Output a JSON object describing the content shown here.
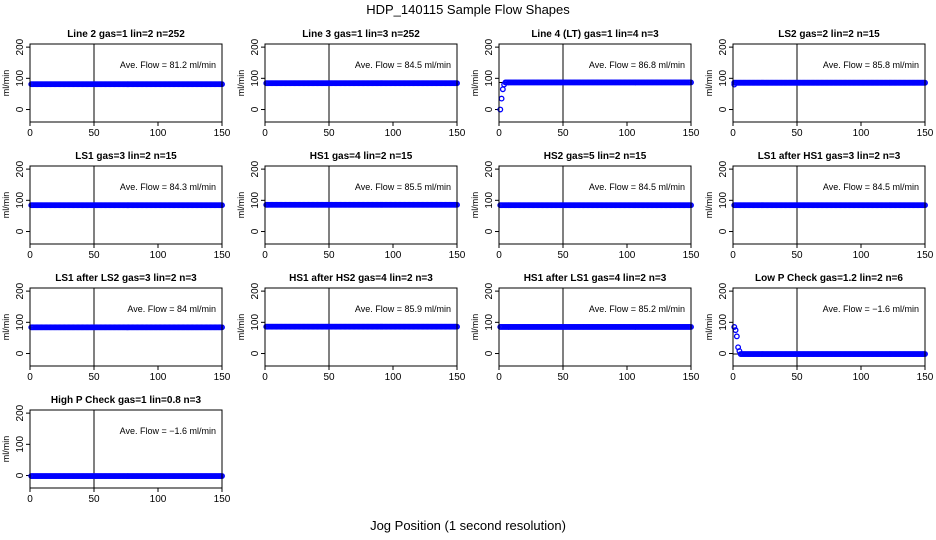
{
  "figure": {
    "title": "HDP_140115  Sample Flow Shapes",
    "x_axis_title": "Jog Position (1 second resolution)",
    "y_axis_label": "ml/min",
    "annotation_prefix": "Ave. Flow = ",
    "annotation_unit": "ml/min",
    "point_color": "#0000ff",
    "x_ticks": [
      0,
      50,
      100,
      150
    ],
    "y_ticks": [
      0,
      100,
      200
    ],
    "vline_x": 50
  },
  "chart_data": [
    {
      "type": "scatter",
      "title": "Line 2 gas=1 lin=2 n=252",
      "ave_flow": "81.2",
      "xlim": [
        0,
        150
      ],
      "ylim": [
        -40,
        210
      ],
      "hline": 81.2,
      "shape": "flat",
      "level": 81.2,
      "x_start": 1,
      "x_end": 150,
      "startup": []
    },
    {
      "type": "scatter",
      "title": "Line 3 gas=1 lin=3 n=252",
      "ave_flow": "84.5",
      "xlim": [
        0,
        150
      ],
      "ylim": [
        -40,
        210
      ],
      "hline": 84.5,
      "shape": "flat",
      "level": 84.5,
      "x_start": 1,
      "x_end": 150,
      "startup": []
    },
    {
      "type": "scatter",
      "title": "Line 4 (LT) gas=1 lin=4 n=3",
      "ave_flow": "86.8",
      "xlim": [
        0,
        150
      ],
      "ylim": [
        -40,
        210
      ],
      "hline": 86.8,
      "shape": "flat",
      "level": 86.8,
      "x_start": 5,
      "x_end": 150,
      "startup": [
        [
          1,
          0
        ],
        [
          2,
          35
        ],
        [
          3,
          65
        ],
        [
          4,
          80
        ]
      ]
    },
    {
      "type": "scatter",
      "title": "LS2 gas=2 lin=2 n=15",
      "ave_flow": "85.8",
      "xlim": [
        0,
        150
      ],
      "ylim": [
        -40,
        210
      ],
      "hline": 85.8,
      "shape": "flat",
      "level": 85.8,
      "x_start": 1,
      "x_end": 150,
      "startup": [
        [
          1,
          80
        ]
      ]
    },
    {
      "type": "scatter",
      "title": "LS1 gas=3 lin=2 n=15",
      "ave_flow": "84.3",
      "xlim": [
        0,
        150
      ],
      "ylim": [
        -40,
        210
      ],
      "hline": 84.3,
      "shape": "flat",
      "level": 84.3,
      "x_start": 1,
      "x_end": 150,
      "startup": []
    },
    {
      "type": "scatter",
      "title": "HS1 gas=4 lin=2 n=15",
      "ave_flow": "85.5",
      "xlim": [
        0,
        150
      ],
      "ylim": [
        -40,
        210
      ],
      "hline": 85.5,
      "shape": "flat",
      "level": 85.5,
      "x_start": 1,
      "x_end": 150,
      "startup": []
    },
    {
      "type": "scatter",
      "title": "HS2 gas=5 lin=2 n=15",
      "ave_flow": "84.5",
      "xlim": [
        0,
        150
      ],
      "ylim": [
        -40,
        210
      ],
      "hline": 84.5,
      "shape": "flat",
      "level": 84.5,
      "x_start": 1,
      "x_end": 150,
      "startup": []
    },
    {
      "type": "scatter",
      "title": "LS1 after HS1 gas=3 lin=2 n=3",
      "ave_flow": "84.5",
      "xlim": [
        0,
        150
      ],
      "ylim": [
        -40,
        210
      ],
      "hline": 84.5,
      "shape": "flat",
      "level": 84.5,
      "x_start": 1,
      "x_end": 150,
      "startup": []
    },
    {
      "type": "scatter",
      "title": "LS1 after LS2 gas=3 lin=2 n=3",
      "ave_flow": "84",
      "xlim": [
        0,
        150
      ],
      "ylim": [
        -40,
        210
      ],
      "hline": 84,
      "shape": "flat",
      "level": 84,
      "x_start": 1,
      "x_end": 150,
      "startup": []
    },
    {
      "type": "scatter",
      "title": "HS1 after HS2 gas=4 lin=2 n=3",
      "ave_flow": "85.9",
      "xlim": [
        0,
        150
      ],
      "ylim": [
        -40,
        210
      ],
      "hline": 85.9,
      "shape": "flat",
      "level": 85.9,
      "x_start": 1,
      "x_end": 150,
      "startup": []
    },
    {
      "type": "scatter",
      "title": "HS1 after LS1 gas=4 lin=2 n=3",
      "ave_flow": "85.2",
      "xlim": [
        0,
        150
      ],
      "ylim": [
        -40,
        210
      ],
      "hline": 85.2,
      "shape": "flat",
      "level": 85.2,
      "x_start": 1,
      "x_end": 150,
      "startup": []
    },
    {
      "type": "scatter",
      "title": "Low P Check gas=1.2 lin=2 n=6",
      "ave_flow": "−1.6",
      "xlim": [
        0,
        150
      ],
      "ylim": [
        -40,
        210
      ],
      "hline": -1.6,
      "shape": "flat",
      "level": -1.6,
      "x_start": 6,
      "x_end": 150,
      "startup": [
        [
          1,
          85
        ],
        [
          2,
          75
        ],
        [
          3,
          55
        ],
        [
          4,
          20
        ],
        [
          5,
          8
        ]
      ]
    },
    {
      "type": "scatter",
      "title": "High P Check gas=1 lin=0.8 n=3",
      "ave_flow": "−1.6",
      "xlim": [
        0,
        150
      ],
      "ylim": [
        -40,
        210
      ],
      "hline": -1.6,
      "shape": "flat",
      "level": -1.6,
      "x_start": 1,
      "x_end": 150,
      "startup": []
    }
  ]
}
